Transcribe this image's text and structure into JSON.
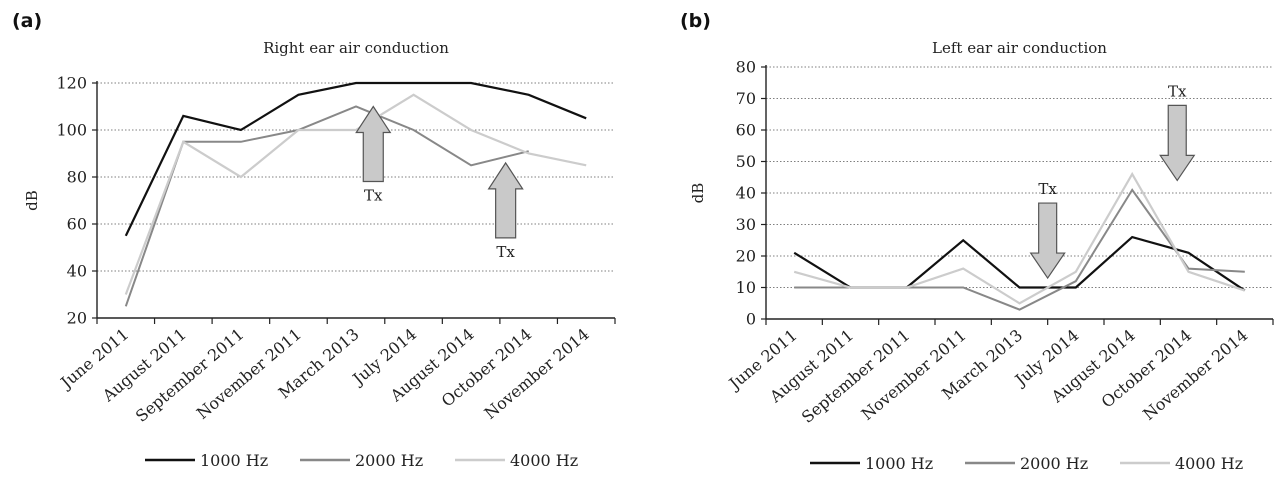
{
  "colors": {
    "1000 Hz": "#111111",
    "2000 Hz": "#888888",
    "4000 Hz": "#cccccc",
    "arrow_fill": "#c9c9c9",
    "arrow_stroke": "#555555"
  },
  "chart_data": [
    {
      "type": "line",
      "panel_label": "(a)",
      "title": "Right ear air conduction",
      "xlabel": "",
      "ylabel": "dB",
      "ylim": [
        20,
        120
      ],
      "yticks": [
        20,
        40,
        60,
        80,
        100,
        120
      ],
      "grid": true,
      "legend_position": "bottom",
      "categories": [
        "June 2011",
        "August 2011",
        "September 2011",
        "November 2011",
        "March 2013",
        "July 2014",
        "August 2014",
        "October 2014",
        "November 2014"
      ],
      "series": [
        {
          "name": "1000 Hz",
          "x": [
            0,
            1,
            2,
            3,
            4,
            5,
            6,
            7,
            8
          ],
          "values": [
            55,
            106,
            100,
            115,
            120,
            120,
            120,
            115,
            105
          ]
        },
        {
          "name": "2000 Hz",
          "x": [
            0,
            1,
            2,
            3,
            4,
            5,
            6,
            7
          ],
          "values": [
            25,
            95,
            95,
            100,
            110,
            100,
            85,
            91
          ]
        },
        {
          "name": "4000 Hz",
          "x": [
            0,
            1,
            2,
            3,
            4,
            5,
            6,
            7,
            8
          ],
          "values": [
            30,
            95,
            80,
            100,
            100,
            115,
            100,
            90,
            85
          ]
        }
      ],
      "annotations": [
        {
          "text": "Tx",
          "direction": "up",
          "x": 4.3
        },
        {
          "text": "Tx",
          "direction": "up",
          "x": 6.6
        }
      ]
    },
    {
      "type": "line",
      "panel_label": "(b)",
      "title": "Left ear air conduction",
      "xlabel": "",
      "ylabel": "dB",
      "ylim": [
        0,
        80
      ],
      "yticks": [
        0,
        10,
        20,
        30,
        40,
        50,
        60,
        70,
        80
      ],
      "grid": true,
      "legend_position": "bottom",
      "categories": [
        "June 2011",
        "August 2011",
        "September 2011",
        "November 2011",
        "March 2013",
        "July 2014",
        "August 2014",
        "October 2014",
        "November 2014"
      ],
      "series": [
        {
          "name": "1000 Hz",
          "x": [
            0,
            1,
            2,
            3,
            4,
            5,
            6,
            7,
            8
          ],
          "values": [
            21,
            10,
            10,
            25,
            10,
            10,
            26,
            21,
            9
          ]
        },
        {
          "name": "2000 Hz",
          "x": [
            0,
            1,
            2,
            3,
            4,
            5,
            6,
            7,
            8
          ],
          "values": [
            10,
            10,
            10,
            10,
            3,
            12,
            41,
            16,
            15
          ]
        },
        {
          "name": "4000 Hz",
          "x": [
            0,
            1,
            2,
            3,
            4,
            5,
            6,
            7,
            8
          ],
          "values": [
            15,
            10,
            10,
            16,
            5,
            15,
            46,
            15,
            9
          ]
        }
      ],
      "annotations": [
        {
          "text": "Tx",
          "direction": "down",
          "x": 4.5
        },
        {
          "text": "Tx",
          "direction": "down",
          "x": 6.8
        }
      ]
    }
  ]
}
